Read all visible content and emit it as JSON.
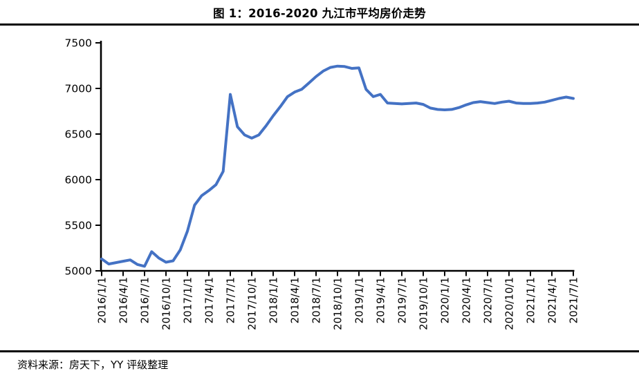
{
  "figure": {
    "title": "图 1：2016-2020 九江市平均房价走势",
    "source_note": "资料来源：房天下，YY 评级整理"
  },
  "chart_data": {
    "type": "line",
    "title": "图 1：2016-2020 九江市平均房价走势",
    "series_name": "九江市平均房价",
    "xlabel": "",
    "ylabel": "",
    "ylim": [
      5000,
      7500
    ],
    "y_ticks": [
      5000,
      5500,
      6000,
      6500,
      7000,
      7500
    ],
    "grid": false,
    "legend": "none",
    "line_color": "#4472C4",
    "axis_color": "#000000",
    "x_tick_labels": [
      "2016/1/1",
      "2016/4/1",
      "2016/7/1",
      "2016/10/1",
      "2017/1/1",
      "2017/4/1",
      "2017/7/1",
      "2017/10/1",
      "2018/1/1",
      "2018/4/1",
      "2018/7/1",
      "2018/10/1",
      "2019/1/1",
      "2019/4/1",
      "2019/7/1",
      "2019/10/1",
      "2020/1/1",
      "2020/4/1",
      "2020/7/1",
      "2020/10/1",
      "2021/1/1",
      "2021/4/1",
      "2021/7/1"
    ],
    "x_tick_every_n_points": 3,
    "months": [
      "2016/1",
      "2016/2",
      "2016/3",
      "2016/4",
      "2016/5",
      "2016/6",
      "2016/7",
      "2016/8",
      "2016/9",
      "2016/10",
      "2016/11",
      "2016/12",
      "2017/1",
      "2017/2",
      "2017/3",
      "2017/4",
      "2017/5",
      "2017/6",
      "2017/7",
      "2017/8",
      "2017/9",
      "2017/10",
      "2017/11",
      "2017/12",
      "2018/1",
      "2018/2",
      "2018/3",
      "2018/4",
      "2018/5",
      "2018/6",
      "2018/7",
      "2018/8",
      "2018/9",
      "2018/10",
      "2018/11",
      "2018/12",
      "2019/1",
      "2019/2",
      "2019/3",
      "2019/4",
      "2019/5",
      "2019/6",
      "2019/7",
      "2019/8",
      "2019/9",
      "2019/10",
      "2019/11",
      "2019/12",
      "2020/1",
      "2020/2",
      "2020/3",
      "2020/4",
      "2020/5",
      "2020/6",
      "2020/7",
      "2020/8",
      "2020/9",
      "2020/10",
      "2020/11",
      "2020/12",
      "2021/1",
      "2021/2",
      "2021/3",
      "2021/4",
      "2021/5",
      "2021/6",
      "2021/7"
    ],
    "values": [
      5130,
      5075,
      5090,
      5105,
      5120,
      5070,
      5050,
      5210,
      5140,
      5095,
      5110,
      5230,
      5435,
      5720,
      5825,
      5880,
      5945,
      6090,
      6935,
      6580,
      6490,
      6455,
      6490,
      6590,
      6700,
      6800,
      6910,
      6960,
      6990,
      7060,
      7130,
      7190,
      7230,
      7245,
      7240,
      7220,
      7225,
      6990,
      6910,
      6935,
      6840,
      6835,
      6830,
      6835,
      6840,
      6825,
      6785,
      6770,
      6765,
      6770,
      6790,
      6820,
      6845,
      6855,
      6845,
      6835,
      6850,
      6860,
      6840,
      6835,
      6835,
      6840,
      6850,
      6870,
      6890,
      6905,
      6890
    ]
  }
}
